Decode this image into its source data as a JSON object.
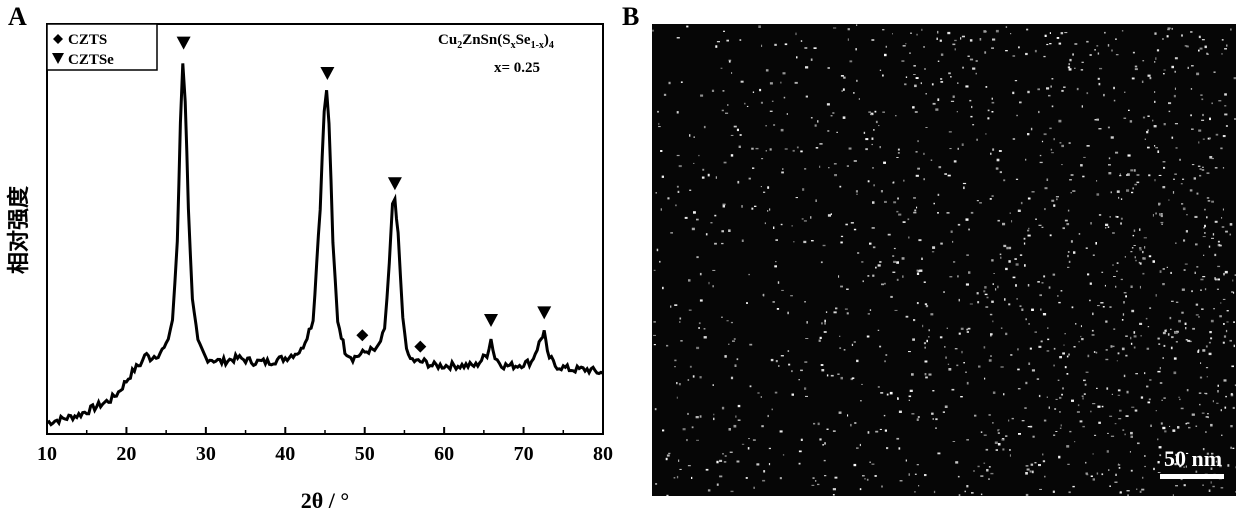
{
  "panels": {
    "a_label": "A",
    "b_label": "B"
  },
  "chart_data": {
    "type": "line",
    "title": "",
    "xlabel": "2θ / °",
    "ylabel": "相对强度",
    "xlim": [
      10,
      80
    ],
    "ylim": [
      0,
      1.0
    ],
    "x_ticks": [
      "10",
      "20",
      "30",
      "40",
      "50",
      "60",
      "70",
      "80"
    ],
    "y_ticks_labeled": false,
    "grid": false,
    "legend_position": "top-left",
    "legend": [
      {
        "marker": "diamond",
        "label": "CZTS"
      },
      {
        "marker": "triangle-down",
        "label": "CZTSe"
      }
    ],
    "annotation": {
      "formula_main": "Cu",
      "formula_sub1": "2",
      "formula_mid": "ZnSn(S",
      "formula_sub2": "x",
      "formula_mid2": "Se",
      "formula_sub3": "1-x",
      "formula_end": ")",
      "formula_sub4": "4",
      "x_value": "x= 0.25"
    },
    "series": [
      {
        "x": [
          10,
          12,
          14,
          16,
          18,
          19,
          20,
          21,
          22,
          22.3,
          23,
          24,
          25,
          25.8,
          26.4,
          26.8,
          27.1,
          27.4,
          27.8,
          28.3,
          29,
          30,
          32,
          34,
          36,
          38,
          40,
          42,
          43.5,
          44.4,
          44.9,
          45.2,
          45.5,
          46,
          46.6,
          47.5,
          48.5,
          49.5,
          50.5,
          51.5,
          52.5,
          53.1,
          53.5,
          53.8,
          54.2,
          54.8,
          55.5,
          56.5,
          57.5,
          58.5,
          60,
          62,
          64,
          65.4,
          65.9,
          66.4,
          67.5,
          69,
          71,
          72.2,
          72.6,
          73,
          74,
          76,
          78,
          80
        ],
        "y": [
          0.03,
          0.04,
          0.05,
          0.07,
          0.09,
          0.11,
          0.14,
          0.17,
          0.19,
          0.21,
          0.2,
          0.21,
          0.23,
          0.3,
          0.5,
          0.82,
          0.98,
          0.88,
          0.6,
          0.35,
          0.24,
          0.2,
          0.19,
          0.2,
          0.19,
          0.19,
          0.2,
          0.22,
          0.3,
          0.6,
          0.85,
          0.9,
          0.82,
          0.5,
          0.3,
          0.22,
          0.2,
          0.21,
          0.22,
          0.22,
          0.27,
          0.45,
          0.6,
          0.61,
          0.52,
          0.3,
          0.2,
          0.19,
          0.19,
          0.18,
          0.18,
          0.18,
          0.18,
          0.21,
          0.25,
          0.2,
          0.18,
          0.18,
          0.19,
          0.25,
          0.27,
          0.21,
          0.18,
          0.17,
          0.17,
          0.16
        ]
      }
    ],
    "markers": [
      {
        "type": "triangle-down",
        "x": 27.2,
        "y": 1.03
      },
      {
        "type": "triangle-down",
        "x": 45.3,
        "y": 0.95
      },
      {
        "type": "triangle-down",
        "x": 53.8,
        "y": 0.66
      },
      {
        "type": "diamond",
        "x": 49.7,
        "y": 0.26
      },
      {
        "type": "diamond",
        "x": 57.0,
        "y": 0.23
      },
      {
        "type": "triangle-down",
        "x": 65.9,
        "y": 0.3
      },
      {
        "type": "triangle-down",
        "x": 72.6,
        "y": 0.32
      }
    ]
  },
  "tem": {
    "scale_text": "50 nm"
  },
  "colors": {
    "line": "#000000",
    "tem_background": "#060606",
    "tem_particles": "#f0f0f0"
  }
}
